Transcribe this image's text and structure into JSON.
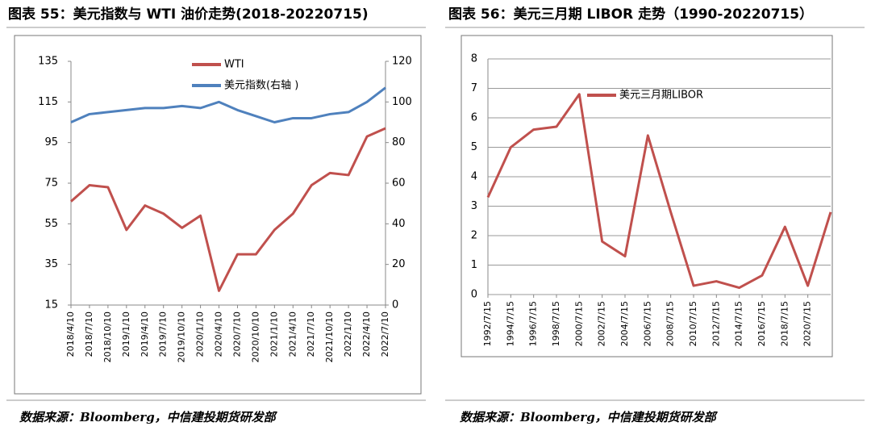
{
  "chart_data": [
    {
      "type": "line",
      "title": "图表 55：美元指数与 WTI 油价走势(2018-20220715)",
      "source": "数据来源：Bloomberg，中信建投期货研发部",
      "categories": [
        "2018/4/10",
        "2018/7/10",
        "2018/10/10",
        "2019/1/10",
        "2019/4/10",
        "2019/7/10",
        "2019/10/10",
        "2020/1/10",
        "2020/4/10",
        "2020/7/10",
        "2020/10/10",
        "2021/1/10",
        "2021/4/10",
        "2021/7/10",
        "2021/10/10",
        "2022/1/10",
        "2022/4/10",
        "2022/7/10"
      ],
      "series": [
        {
          "name": "WTI",
          "color": "#c0504d",
          "values": [
            66,
            74,
            73,
            52,
            64,
            60,
            53,
            59,
            22,
            40,
            40,
            52,
            60,
            74,
            80,
            79,
            98,
            102
          ]
        },
        {
          "name": "美元指数(右轴 )",
          "color": "#4f81bd",
          "axis": "y2",
          "values": [
            90,
            94,
            95,
            96,
            97,
            97,
            98,
            97,
            100,
            96,
            93,
            90,
            92,
            92,
            94,
            95,
            100,
            107
          ]
        }
      ],
      "ylim": [
        15,
        135
      ],
      "yticks": [
        15,
        35,
        55,
        75,
        95,
        115,
        135
      ],
      "y2lim": [
        0,
        120
      ],
      "y2ticks": [
        0,
        20,
        40,
        60,
        80,
        100,
        120
      ],
      "grid": false
    },
    {
      "type": "line",
      "title": "图表 56：美元三月期 LIBOR 走势（1990-20220715）",
      "source": "数据来源：Bloomberg，中信建投期货研发部",
      "categories": [
        "1992/7/15",
        "1994/7/15",
        "1996/7/15",
        "1998/7/15",
        "2000/7/15",
        "2002/7/15",
        "2004/7/15",
        "2006/7/15",
        "2008/7/15",
        "2010/7/15",
        "2012/7/15",
        "2014/7/15",
        "2016/7/15",
        "2018/7/15",
        "2020/7/15",
        null
      ],
      "series": [
        {
          "name": "美元三月期LIBOR",
          "color": "#c0504d",
          "values": [
            3.3,
            5.0,
            5.6,
            5.7,
            6.8,
            1.8,
            1.3,
            5.4,
            2.8,
            0.3,
            0.45,
            0.23,
            0.65,
            2.3,
            0.3,
            2.8
          ]
        }
      ],
      "ylim": [
        0,
        8
      ],
      "yticks": [
        0,
        1,
        2,
        3,
        4,
        5,
        6,
        7,
        8
      ],
      "grid": true
    }
  ]
}
